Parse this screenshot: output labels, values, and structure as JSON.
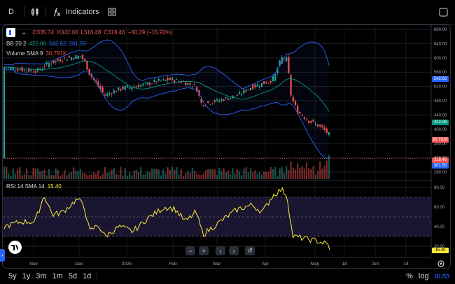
{
  "toolbar": {
    "interval": "D",
    "indicators_label": "Indicators"
  },
  "legend": {
    "open": "O335.74",
    "high": "H342.00",
    "low": "L316.48",
    "close": "C318.46",
    "change": "−60.29 (−15.92%)",
    "bb_label": "BB 20 2",
    "bb_mid": "422.06",
    "bb_upper": "542.62",
    "bb_lower": "301.50",
    "vol_label": "Volume SMA 9",
    "vol_value": "30.791K",
    "rsi_label": "RSI 14 SMA 14",
    "rsi_value": "15.40"
  },
  "price_axis": [
    "680.00",
    "640.00",
    "600.00",
    "560.00",
    "520.00",
    "480.00",
    "440.00",
    "400.00",
    "360.00",
    "320.00",
    "280.00"
  ],
  "price_tags": {
    "upper": "542.62",
    "mid": "422.06",
    "vol": "30.791K",
    "close": "318.46",
    "lower": "301.50"
  },
  "rsi_axis": [
    "80.00",
    "60.00",
    "40.00",
    "20.00"
  ],
  "rsi_tag": "15.40",
  "time_axis": [
    "Nov",
    "Dec",
    "2025",
    "Feb",
    "Mar",
    "Apr",
    "May",
    "18",
    "Jun",
    "14"
  ],
  "bottom": {
    "ranges": [
      "5y",
      "1y",
      "3m",
      "1m",
      "5d",
      "1d"
    ],
    "percent": "%",
    "log": "log",
    "auto": "auto"
  },
  "colors": {
    "up": "#26a69a",
    "down": "#ef5350",
    "bb": "#2962ff",
    "bb_mid": "#089981",
    "rsi": "#ffeb3b",
    "accent": "#2962ff"
  }
}
